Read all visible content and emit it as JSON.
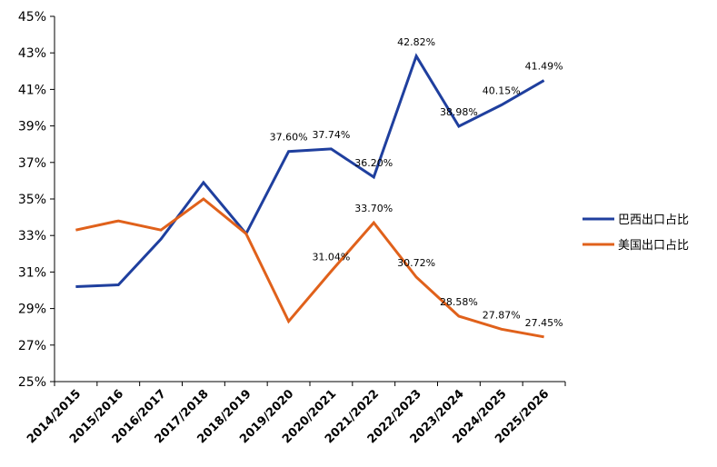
{
  "chart_data": {
    "type": "line",
    "categories": [
      "2014/2015",
      "2015/2016",
      "2016/2017",
      "2017/2018",
      "2018/2019",
      "2019/2020",
      "2020/2021",
      "2021/2022",
      "2022/2023",
      "2023/2024",
      "2024/2025",
      "2025/2026"
    ],
    "ylim": [
      25,
      45
    ],
    "yticks": [
      "25%",
      "27%",
      "29%",
      "31%",
      "33%",
      "35%",
      "37%",
      "39%",
      "41%",
      "43%",
      "45%"
    ],
    "grid": false,
    "legend_position": "right",
    "series": [
      {
        "name": "巴西出口占比",
        "color": "#1f3f9e",
        "values": [
          30.2,
          30.3,
          32.8,
          35.9,
          33.1,
          37.6,
          37.74,
          36.2,
          42.82,
          38.98,
          40.15,
          41.49
        ],
        "labels": [
          "",
          "",
          "",
          "",
          "",
          "37.60%",
          "37.74%",
          "36.20%",
          "42.82%",
          "38.98%",
          "40.15%",
          "41.49%"
        ]
      },
      {
        "name": "美国出口占比",
        "color": "#e0611b",
        "values": [
          33.3,
          33.8,
          33.3,
          35.0,
          33.1,
          28.3,
          31.04,
          33.7,
          30.72,
          28.58,
          27.87,
          27.45
        ],
        "labels": [
          "",
          "",
          "",
          "",
          "",
          "",
          "31.04%",
          "33.70%",
          "30.72%",
          "28.58%",
          "27.87%",
          "27.45%"
        ]
      }
    ]
  }
}
